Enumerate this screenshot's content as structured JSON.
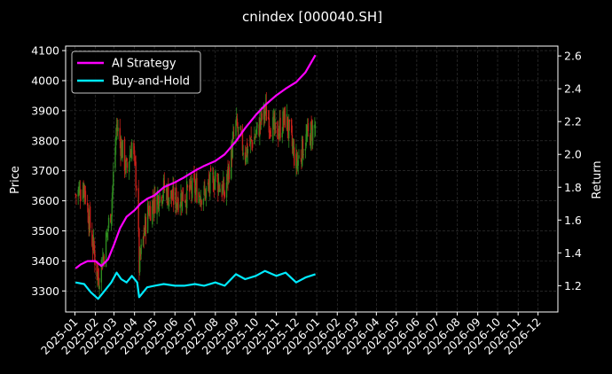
{
  "chart_data": {
    "type": "candlestick-line",
    "title": "cnindex [000040.SH]",
    "ylabel_left": "Price",
    "ylabel_right": "Return",
    "ylim_left": [
      3230,
      4115
    ],
    "ylim_right": [
      1.04,
      2.66
    ],
    "yticks_left": [
      3300,
      3400,
      3500,
      3600,
      3700,
      3800,
      3900,
      4000,
      4100
    ],
    "yticks_right": [
      1.2,
      1.4,
      1.6,
      1.8,
      2.0,
      2.2,
      2.4,
      2.6
    ],
    "x_range": [
      "2024-12-18",
      "2026-12-31"
    ],
    "xticks": [
      "2025-01",
      "2025-02",
      "2025-03",
      "2025-04",
      "2025-05",
      "2025-06",
      "2025-07",
      "2025-08",
      "2025-09",
      "2025-10",
      "2025-11",
      "2025-12",
      "2026-01",
      "2026-02",
      "2026-03",
      "2026-04",
      "2026-05",
      "2026-06",
      "2026-07",
      "2026-08",
      "2026-09",
      "2026-10",
      "2026-11",
      "2026-12"
    ],
    "grid": true,
    "legend_position": "top-left",
    "colors": {
      "background": "#000000",
      "up": "#2e8b1f",
      "down": "#c8201a",
      "ai_strategy": "#ff00ff",
      "buy_and_hold": "#00eaff",
      "grid": "#3a3a3a"
    },
    "series": [
      {
        "name": "AI Strategy",
        "axis": "right",
        "points": [
          [
            "2025-01-02",
            1.305
          ],
          [
            "2025-01-10",
            1.33
          ],
          [
            "2025-01-20",
            1.35
          ],
          [
            "2025-02-01",
            1.35
          ],
          [
            "2025-02-10",
            1.32
          ],
          [
            "2025-02-20",
            1.36
          ],
          [
            "2025-03-01",
            1.45
          ],
          [
            "2025-03-10",
            1.55
          ],
          [
            "2025-03-20",
            1.62
          ],
          [
            "2025-04-01",
            1.66
          ],
          [
            "2025-04-10",
            1.7
          ],
          [
            "2025-04-20",
            1.73
          ],
          [
            "2025-05-01",
            1.75
          ],
          [
            "2025-05-15",
            1.8
          ],
          [
            "2025-06-01",
            1.83
          ],
          [
            "2025-06-15",
            1.86
          ],
          [
            "2025-07-01",
            1.9
          ],
          [
            "2025-07-15",
            1.93
          ],
          [
            "2025-08-01",
            1.96
          ],
          [
            "2025-08-15",
            2.0
          ],
          [
            "2025-09-01",
            2.08
          ],
          [
            "2025-09-15",
            2.16
          ],
          [
            "2025-10-01",
            2.24
          ],
          [
            "2025-10-15",
            2.3
          ],
          [
            "2025-11-01",
            2.36
          ],
          [
            "2025-11-15",
            2.4
          ],
          [
            "2025-12-01",
            2.44
          ],
          [
            "2025-12-15",
            2.5
          ],
          [
            "2025-12-30",
            2.605
          ]
        ]
      },
      {
        "name": "Buy-and-Hold",
        "axis": "right",
        "points": [
          [
            "2025-01-02",
            1.22
          ],
          [
            "2025-01-15",
            1.21
          ],
          [
            "2025-01-25",
            1.16
          ],
          [
            "2025-02-05",
            1.12
          ],
          [
            "2025-02-15",
            1.17
          ],
          [
            "2025-02-25",
            1.22
          ],
          [
            "2025-03-05",
            1.28
          ],
          [
            "2025-03-12",
            1.24
          ],
          [
            "2025-03-20",
            1.22
          ],
          [
            "2025-03-28",
            1.26
          ],
          [
            "2025-04-05",
            1.22
          ],
          [
            "2025-04-08",
            1.13
          ],
          [
            "2025-04-20",
            1.19
          ],
          [
            "2025-05-01",
            1.2
          ],
          [
            "2025-05-15",
            1.21
          ],
          [
            "2025-06-01",
            1.2
          ],
          [
            "2025-06-15",
            1.2
          ],
          [
            "2025-07-01",
            1.21
          ],
          [
            "2025-07-15",
            1.2
          ],
          [
            "2025-08-01",
            1.22
          ],
          [
            "2025-08-15",
            1.2
          ],
          [
            "2025-09-01",
            1.27
          ],
          [
            "2025-09-15",
            1.24
          ],
          [
            "2025-10-01",
            1.26
          ],
          [
            "2025-10-15",
            1.29
          ],
          [
            "2025-11-01",
            1.26
          ],
          [
            "2025-11-15",
            1.28
          ],
          [
            "2025-12-01",
            1.22
          ],
          [
            "2025-12-15",
            1.25
          ],
          [
            "2025-12-30",
            1.27
          ]
        ]
      }
    ],
    "candles_anchor_closes": [
      [
        "2025-01-02",
        3620
      ],
      [
        "2025-01-15",
        3650
      ],
      [
        "2025-01-25",
        3500
      ],
      [
        "2025-02-05",
        3340
      ],
      [
        "2025-02-15",
        3440
      ],
      [
        "2025-02-25",
        3580
      ],
      [
        "2025-03-05",
        3850
      ],
      [
        "2025-03-12",
        3780
      ],
      [
        "2025-03-20",
        3700
      ],
      [
        "2025-03-28",
        3790
      ],
      [
        "2025-04-05",
        3640
      ],
      [
        "2025-04-08",
        3380
      ],
      [
        "2025-04-20",
        3560
      ],
      [
        "2025-05-01",
        3600
      ],
      [
        "2025-05-15",
        3640
      ],
      [
        "2025-06-01",
        3600
      ],
      [
        "2025-06-15",
        3620
      ],
      [
        "2025-07-01",
        3640
      ],
      [
        "2025-07-15",
        3620
      ],
      [
        "2025-08-01",
        3680
      ],
      [
        "2025-08-15",
        3620
      ],
      [
        "2025-09-01",
        3850
      ],
      [
        "2025-09-15",
        3760
      ],
      [
        "2025-10-01",
        3820
      ],
      [
        "2025-10-15",
        3900
      ],
      [
        "2025-11-01",
        3820
      ],
      [
        "2025-11-15",
        3880
      ],
      [
        "2025-12-01",
        3720
      ],
      [
        "2025-12-15",
        3800
      ],
      [
        "2025-12-30",
        3850
      ]
    ]
  }
}
